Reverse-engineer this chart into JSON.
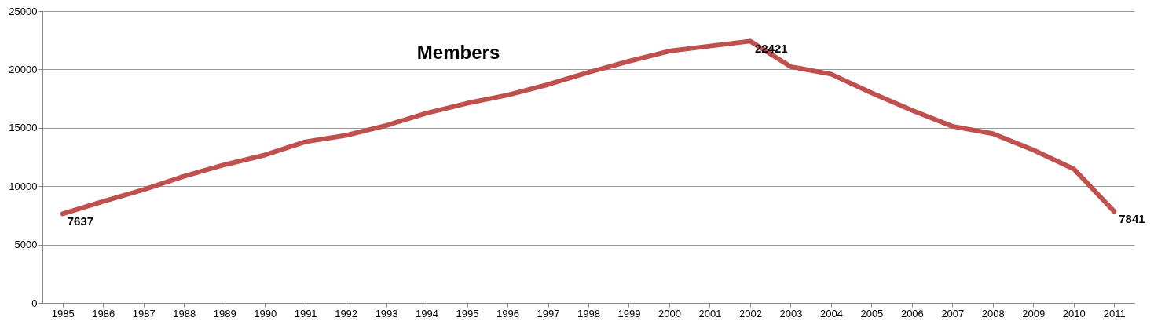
{
  "chart_data": {
    "type": "line",
    "title": "Members",
    "categories": [
      "1985",
      "1986",
      "1987",
      "1988",
      "1989",
      "1990",
      "1991",
      "1992",
      "1993",
      "1994",
      "1995",
      "1996",
      "1997",
      "1998",
      "1999",
      "2000",
      "2001",
      "2002",
      "2003",
      "2004",
      "2005",
      "2006",
      "2007",
      "2008",
      "2009",
      "2010",
      "2011"
    ],
    "series": [
      {
        "color": "#c0504d",
        "values": [
          7637,
          8700,
          9700,
          10850,
          11830,
          12670,
          13800,
          14350,
          15200,
          16250,
          17100,
          17800,
          18700,
          19750,
          20700,
          21570,
          22000,
          22421,
          20240,
          19600,
          18000,
          16500,
          15130,
          14500,
          13100,
          11480,
          7841
        ],
        "value_labels": [
          "7637",
          null,
          null,
          null,
          null,
          null,
          null,
          null,
          null,
          null,
          null,
          null,
          null,
          null,
          null,
          null,
          null,
          "22421",
          null,
          null,
          null,
          null,
          null,
          null,
          null,
          null,
          "7841"
        ]
      }
    ],
    "ylim": [
      0,
      25000
    ],
    "yticks": [
      0,
      5000,
      10000,
      15000,
      20000,
      25000
    ],
    "grid": "y",
    "legend": false,
    "marker": "none",
    "line_style": "solid"
  }
}
